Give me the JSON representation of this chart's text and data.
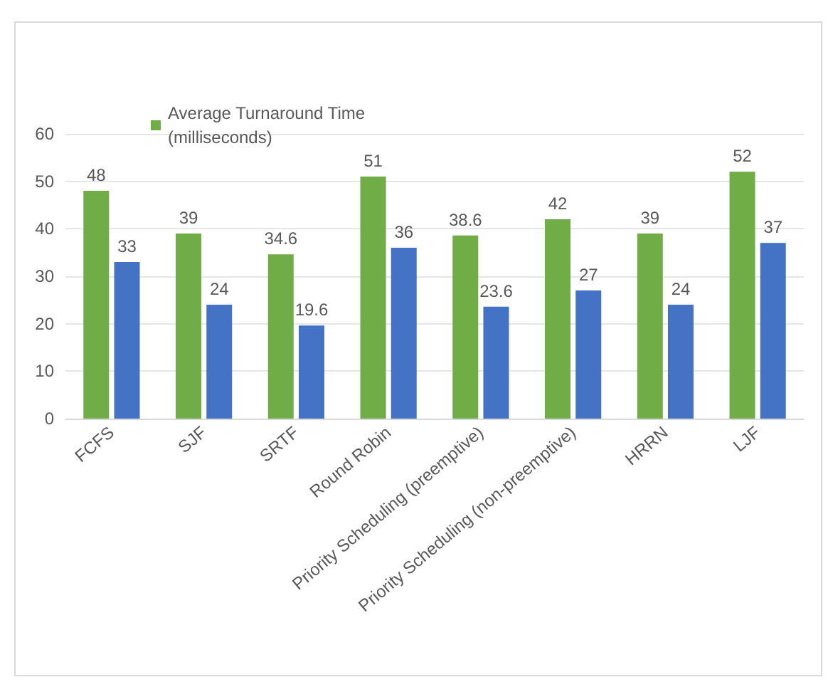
{
  "chart_data": {
    "type": "bar",
    "categories": [
      "FCFS",
      "SJF",
      "SRTF",
      "Round Robin",
      "Priority Scheduling (preemptive)",
      "Priority Scheduling (non-preemptive)",
      "HRRN",
      "LJF"
    ],
    "series": [
      {
        "name": "Average Turnaround Time (milliseconds)",
        "color": "#70ad47",
        "values": [
          48,
          39,
          34.6,
          51,
          38.6,
          42,
          39,
          52
        ]
      },
      {
        "color": "#4472c4",
        "values": [
          33,
          24,
          19.6,
          36,
          23.6,
          27,
          24,
          37
        ]
      }
    ],
    "ylim": [
      0,
      60
    ],
    "yticks": [
      0,
      10,
      20,
      30,
      40,
      50,
      60
    ],
    "grid": "y",
    "legend": "top left",
    "data_labels": true
  }
}
